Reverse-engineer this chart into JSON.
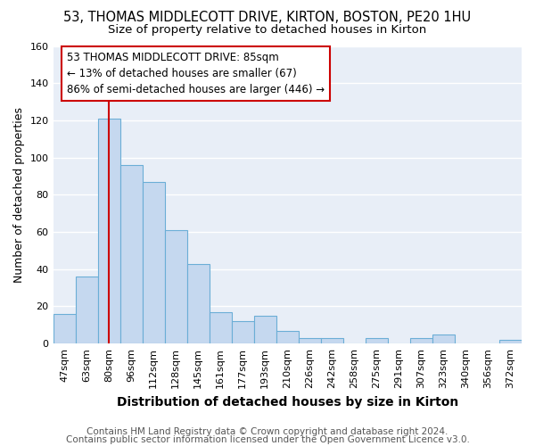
{
  "title_line1": "53, THOMAS MIDDLECOTT DRIVE, KIRTON, BOSTON, PE20 1HU",
  "title_line2": "Size of property relative to detached houses in Kirton",
  "xlabel": "Distribution of detached houses by size in Kirton",
  "ylabel": "Number of detached properties",
  "categories": [
    "47sqm",
    "63sqm",
    "80sqm",
    "96sqm",
    "112sqm",
    "128sqm",
    "145sqm",
    "161sqm",
    "177sqm",
    "193sqm",
    "210sqm",
    "226sqm",
    "242sqm",
    "258sqm",
    "275sqm",
    "291sqm",
    "307sqm",
    "323sqm",
    "340sqm",
    "356sqm",
    "372sqm"
  ],
  "values": [
    16,
    36,
    121,
    96,
    87,
    61,
    43,
    17,
    12,
    15,
    7,
    3,
    3,
    0,
    3,
    0,
    3,
    5,
    0,
    0,
    2
  ],
  "bar_color": "#c5d8ef",
  "bar_edge_color": "#6baed6",
  "red_line_index": 2,
  "annotation_line1": "53 THOMAS MIDDLECOTT DRIVE: 85sqm",
  "annotation_line2": "← 13% of detached houses are smaller (67)",
  "annotation_line3": "86% of semi-detached houses are larger (446) →",
  "annotation_box_color": "white",
  "annotation_box_edge_color": "#cc0000",
  "ylim": [
    0,
    160
  ],
  "yticks": [
    0,
    20,
    40,
    60,
    80,
    100,
    120,
    140,
    160
  ],
  "footer_line1": "Contains HM Land Registry data © Crown copyright and database right 2024.",
  "footer_line2": "Contains public sector information licensed under the Open Government Licence v3.0.",
  "bg_color": "#ffffff",
  "plot_bg_color": "#e8eef7",
  "grid_color": "#ffffff",
  "title_fontsize": 10.5,
  "subtitle_fontsize": 9.5,
  "ylabel_fontsize": 9,
  "xlabel_fontsize": 10,
  "tick_fontsize": 8,
  "annotation_fontsize": 8.5,
  "footer_fontsize": 7.5
}
